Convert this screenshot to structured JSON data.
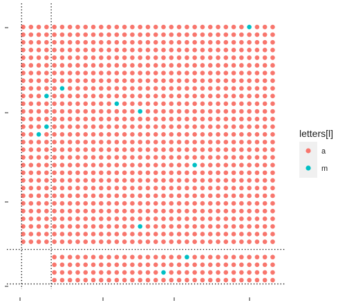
{
  "chart_data": {
    "type": "scatter",
    "title": "",
    "xlabel": "",
    "ylabel": "",
    "legend": {
      "title": "letters[l]",
      "placement": "right",
      "entries": [
        {
          "label": "a",
          "color": "#F8766D"
        },
        {
          "label": "m",
          "color": "#00BFC4"
        }
      ]
    },
    "grid": false,
    "grid_points": {
      "x_range": [
        1,
        33
      ],
      "y_range": [
        1,
        34
      ],
      "missing_row": 5,
      "missing_cols_in_lower_rows": [
        1,
        2,
        3,
        4
      ],
      "default_group": "a"
    },
    "highlighted_points_group_m": [
      {
        "x": 30,
        "y": 34
      },
      {
        "x": 6,
        "y": 26
      },
      {
        "x": 4,
        "y": 25
      },
      {
        "x": 13,
        "y": 24
      },
      {
        "x": 16,
        "y": 23
      },
      {
        "x": 4,
        "y": 21
      },
      {
        "x": 3,
        "y": 20
      },
      {
        "x": 23,
        "y": 16
      },
      {
        "x": 16,
        "y": 8
      },
      {
        "x": 22,
        "y": 4
      },
      {
        "x": 19,
        "y": 2
      }
    ],
    "reference_lines": {
      "vertical_x": [
        0.8,
        4.6
      ],
      "horizontal_y": [
        0.5,
        5.0
      ]
    }
  }
}
